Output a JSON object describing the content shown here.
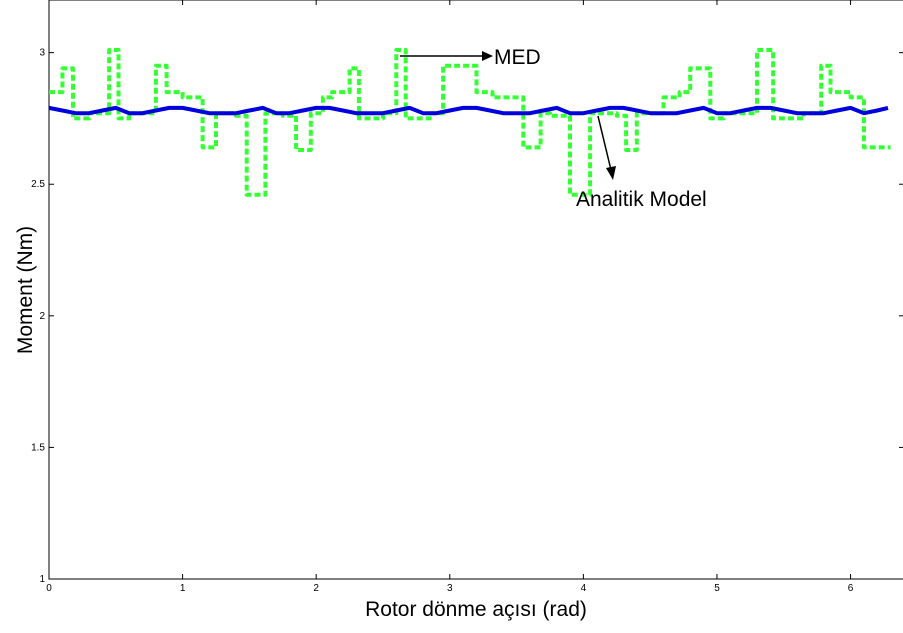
{
  "chart_data": {
    "type": "line",
    "xlabel": "Rotor dönme açısı (rad)",
    "ylabel": "Moment (Nm)",
    "xlim": [
      0,
      6.4
    ],
    "ylim": [
      1,
      3.2
    ],
    "xticks": [
      0,
      1,
      2,
      3,
      4,
      5,
      6
    ],
    "yticks": [
      1,
      1.5,
      2,
      2.5,
      3
    ],
    "xtick_labels": [
      "0",
      "1",
      "2",
      "3",
      "4",
      "5",
      "6"
    ],
    "ytick_labels": [
      "1",
      "1.5",
      "2",
      "2.5",
      "3"
    ],
    "grid": false,
    "series": [
      {
        "name": "MED",
        "color": "#33ff33",
        "style": "dashed",
        "x": [
          0.0,
          0.1,
          0.1,
          0.18,
          0.18,
          0.3,
          0.3,
          0.45,
          0.45,
          0.52,
          0.52,
          0.6,
          0.6,
          0.8,
          0.8,
          0.88,
          0.88,
          1.0,
          1.0,
          1.15,
          1.15,
          1.25,
          1.25,
          1.4,
          1.4,
          1.48,
          1.48,
          1.62,
          1.62,
          1.75,
          1.75,
          1.85,
          1.85,
          1.96,
          1.96,
          2.05,
          2.05,
          2.12,
          2.12,
          2.25,
          2.25,
          2.32,
          2.32,
          2.5,
          2.5,
          2.6,
          2.6,
          2.67,
          2.67,
          2.85,
          2.85,
          2.95,
          2.95,
          3.2,
          3.2,
          3.32,
          3.32,
          3.55,
          3.55,
          3.68,
          3.68,
          3.75,
          3.75,
          3.9,
          3.9,
          4.05,
          4.05,
          4.25,
          4.25,
          4.32,
          4.32,
          4.4,
          4.4,
          4.6,
          4.6,
          4.72,
          4.72,
          4.8,
          4.8,
          4.95,
          4.95,
          5.05,
          5.05,
          5.3,
          5.3,
          5.42,
          5.42,
          5.65,
          5.65,
          5.78,
          5.78,
          5.85,
          5.85,
          6.0,
          6.0,
          6.1,
          6.1,
          6.3
        ],
        "y": [
          2.85,
          2.85,
          2.94,
          2.94,
          2.75,
          2.75,
          2.77,
          2.77,
          3.01,
          3.01,
          2.75,
          2.75,
          2.77,
          2.77,
          2.95,
          2.95,
          2.85,
          2.85,
          2.83,
          2.83,
          2.64,
          2.64,
          2.77,
          2.77,
          2.76,
          2.76,
          2.46,
          2.46,
          2.77,
          2.77,
          2.76,
          2.76,
          2.63,
          2.63,
          2.77,
          2.77,
          2.83,
          2.83,
          2.85,
          2.85,
          2.94,
          2.94,
          2.75,
          2.75,
          2.77,
          2.77,
          3.01,
          3.01,
          2.75,
          2.75,
          2.77,
          2.77,
          2.95,
          2.95,
          2.85,
          2.85,
          2.83,
          2.83,
          2.64,
          2.64,
          2.77,
          2.77,
          2.76,
          2.76,
          2.46,
          2.46,
          2.77,
          2.77,
          2.76,
          2.76,
          2.63,
          2.63,
          2.77,
          2.77,
          2.83,
          2.83,
          2.85,
          2.85,
          2.94,
          2.94,
          2.75,
          2.75,
          2.77,
          2.77,
          3.01,
          3.01,
          2.75,
          2.75,
          2.77,
          2.77,
          2.95,
          2.95,
          2.85,
          2.85,
          2.83,
          2.83,
          2.64,
          2.64
        ]
      },
      {
        "name": "Analitik Model",
        "color": "#0000dd",
        "style": "solid",
        "x": [
          0.0,
          0.1,
          0.2,
          0.3,
          0.4,
          0.5,
          0.6,
          0.7,
          0.8,
          0.9,
          1.0,
          1.1,
          1.2,
          1.3,
          1.4,
          1.5,
          1.6,
          1.7,
          1.8,
          1.9,
          2.0,
          2.1,
          2.2,
          2.3,
          2.4,
          2.5,
          2.6,
          2.7,
          2.8,
          2.9,
          3.0,
          3.1,
          3.2,
          3.3,
          3.4,
          3.5,
          3.6,
          3.7,
          3.8,
          3.9,
          4.0,
          4.1,
          4.2,
          4.3,
          4.4,
          4.5,
          4.6,
          4.7,
          4.8,
          4.9,
          5.0,
          5.1,
          5.2,
          5.3,
          5.4,
          5.5,
          5.6,
          5.7,
          5.8,
          5.9,
          6.0,
          6.1,
          6.2,
          6.28
        ],
        "y": [
          2.79,
          2.78,
          2.77,
          2.77,
          2.78,
          2.79,
          2.77,
          2.77,
          2.78,
          2.79,
          2.79,
          2.78,
          2.77,
          2.77,
          2.77,
          2.78,
          2.79,
          2.77,
          2.77,
          2.78,
          2.79,
          2.79,
          2.78,
          2.77,
          2.77,
          2.77,
          2.78,
          2.79,
          2.77,
          2.77,
          2.78,
          2.79,
          2.79,
          2.78,
          2.77,
          2.77,
          2.77,
          2.78,
          2.79,
          2.77,
          2.77,
          2.78,
          2.79,
          2.79,
          2.78,
          2.77,
          2.77,
          2.77,
          2.78,
          2.79,
          2.77,
          2.77,
          2.78,
          2.79,
          2.79,
          2.78,
          2.77,
          2.77,
          2.77,
          2.78,
          2.79,
          2.77,
          2.78,
          2.79
        ]
      }
    ],
    "annotations": [
      {
        "text": "MED"
      },
      {
        "text": "Analitik Model"
      }
    ]
  }
}
